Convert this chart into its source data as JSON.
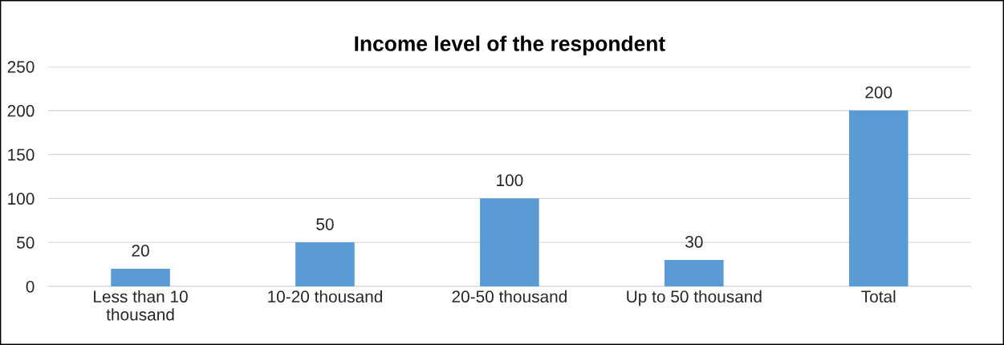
{
  "chart_data": {
    "type": "bar",
    "title": "Income level of the respondent",
    "categories": [
      "Less than 10\nthousand",
      "10-20 thousand",
      "20-50 thousand",
      "Up to 50 thousand",
      "Total"
    ],
    "values": [
      20,
      50,
      100,
      30,
      200
    ],
    "color": "#5b9bd5",
    "ylim": [
      0,
      250
    ],
    "yticks": [
      0,
      50,
      100,
      150,
      200,
      250
    ],
    "grid": "y",
    "data_labels": true,
    "legend": false
  }
}
